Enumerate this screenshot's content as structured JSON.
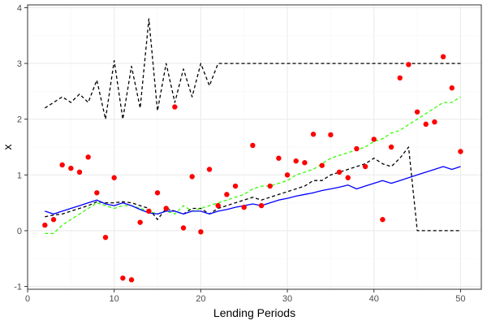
{
  "chart_data": {
    "type": "line",
    "title": "",
    "xlabel": "Lending Periods",
    "ylabel": "x",
    "xlim": [
      0,
      52.4
    ],
    "ylim": [
      -1.05,
      4.05
    ],
    "x_ticks": [
      0,
      10,
      20,
      30,
      40,
      50
    ],
    "y_ticks": [
      -1,
      0,
      1,
      2,
      3,
      4
    ],
    "x_minor": [
      5,
      15,
      25,
      35,
      45
    ],
    "y_minor": [
      -0.5,
      0.5,
      1.5,
      2.5,
      3.5
    ],
    "grid": true,
    "legend": "none",
    "colors": {
      "panel_border": "#333333",
      "grid_major": "#ebebeb",
      "grid_minor": "#f5f5f5",
      "tick": "#333333"
    },
    "series": [
      {
        "style": "dashed",
        "color": "#000000",
        "x": [
          2,
          3,
          4,
          5,
          6,
          7,
          8,
          9,
          10,
          11,
          12,
          13,
          14,
          15,
          16,
          17,
          18,
          19,
          20,
          21,
          22,
          23,
          24,
          25,
          26,
          27,
          28,
          29,
          30,
          31,
          32,
          33,
          34,
          35,
          36,
          37,
          38,
          39,
          40,
          41,
          42,
          43,
          44,
          45,
          46,
          47,
          48,
          49,
          50
        ],
        "y": [
          2.2,
          2.3,
          2.4,
          2.3,
          2.45,
          2.3,
          2.7,
          2.0,
          3.05,
          2.0,
          2.95,
          2.2,
          3.8,
          2.15,
          3.0,
          2.3,
          2.9,
          2.4,
          3.0,
          2.6,
          3.0,
          3.0,
          3.0,
          3.0,
          3.0,
          3.0,
          3.0,
          3.0,
          3.0,
          3.0,
          3.0,
          3.0,
          3.0,
          3.0,
          3.0,
          3.0,
          3.0,
          3.0,
          3.0,
          3.0,
          3.0,
          3.0,
          3.0,
          3.0,
          3.0,
          3.0,
          3.0,
          3.0,
          3.0
        ]
      },
      {
        "style": "dashed",
        "color": "#000000",
        "x": [
          2,
          3,
          4,
          5,
          6,
          7,
          8,
          9,
          10,
          11,
          12,
          13,
          14,
          15,
          16,
          17,
          18,
          19,
          20,
          21,
          22,
          23,
          24,
          25,
          26,
          27,
          28,
          29,
          30,
          31,
          32,
          33,
          34,
          35,
          36,
          37,
          38,
          39,
          40,
          41,
          42,
          43,
          44,
          45,
          46,
          47,
          48,
          49,
          50
        ],
        "y": [
          0.25,
          0.28,
          0.3,
          0.35,
          0.4,
          0.45,
          0.52,
          0.5,
          0.5,
          0.52,
          0.5,
          0.45,
          0.4,
          0.2,
          0.4,
          0.35,
          0.3,
          0.4,
          0.4,
          0.3,
          0.4,
          0.45,
          0.5,
          0.55,
          0.6,
          0.55,
          0.6,
          0.65,
          0.7,
          0.75,
          0.8,
          0.9,
          0.9,
          1.0,
          1.05,
          1.1,
          1.15,
          1.2,
          1.3,
          1.2,
          1.15,
          1.3,
          1.5,
          0.0,
          0.0,
          0.0,
          0.0,
          0.0,
          0.0
        ]
      },
      {
        "style": "dashed",
        "color": "#33ff00",
        "x": [
          2,
          3,
          4,
          5,
          6,
          7,
          8,
          9,
          10,
          11,
          12,
          13,
          14,
          15,
          16,
          17,
          18,
          19,
          20,
          21,
          22,
          23,
          24,
          25,
          26,
          27,
          28,
          29,
          30,
          31,
          32,
          33,
          34,
          35,
          36,
          37,
          38,
          39,
          40,
          41,
          42,
          43,
          44,
          45,
          46,
          47,
          48,
          49,
          50
        ],
        "y": [
          -0.05,
          -0.05,
          0.1,
          0.2,
          0.3,
          0.4,
          0.5,
          0.45,
          0.4,
          0.45,
          0.45,
          0.4,
          0.35,
          0.3,
          0.35,
          0.3,
          0.45,
          0.35,
          0.4,
          0.45,
          0.5,
          0.55,
          0.6,
          0.65,
          0.75,
          0.8,
          0.8,
          0.85,
          0.9,
          1.0,
          1.05,
          1.1,
          1.2,
          1.3,
          1.35,
          1.4,
          1.45,
          1.5,
          1.6,
          1.65,
          1.75,
          1.8,
          1.9,
          2.0,
          2.1,
          2.2,
          2.3,
          2.3,
          2.4
        ]
      },
      {
        "style": "solid",
        "color": "#0000ff",
        "x": [
          2,
          3,
          4,
          5,
          6,
          7,
          8,
          9,
          10,
          11,
          12,
          13,
          14,
          15,
          16,
          17,
          18,
          19,
          20,
          21,
          22,
          23,
          24,
          25,
          26,
          27,
          28,
          29,
          30,
          31,
          32,
          33,
          34,
          35,
          36,
          37,
          38,
          39,
          40,
          41,
          42,
          43,
          44,
          45,
          46,
          47,
          48,
          49,
          50
        ],
        "y": [
          0.35,
          0.3,
          0.35,
          0.4,
          0.45,
          0.5,
          0.55,
          0.48,
          0.45,
          0.5,
          0.45,
          0.38,
          0.32,
          0.3,
          0.35,
          0.35,
          0.3,
          0.35,
          0.35,
          0.3,
          0.35,
          0.38,
          0.42,
          0.45,
          0.48,
          0.45,
          0.5,
          0.55,
          0.58,
          0.62,
          0.65,
          0.68,
          0.72,
          0.75,
          0.78,
          0.82,
          0.75,
          0.8,
          0.85,
          0.9,
          0.85,
          0.9,
          0.95,
          1.0,
          1.05,
          1.1,
          1.15,
          1.1,
          1.15
        ]
      }
    ],
    "points": {
      "color": "#ff0000",
      "x": [
        2,
        3,
        4,
        5,
        6,
        7,
        8,
        9,
        10,
        11,
        12,
        13,
        14,
        15,
        16,
        17,
        18,
        19,
        20,
        21,
        22,
        23,
        24,
        25,
        26,
        27,
        28,
        29,
        30,
        31,
        32,
        33,
        34,
        35,
        36,
        37,
        38,
        39,
        40,
        41,
        42,
        43,
        44,
        45,
        46,
        47,
        48,
        49,
        50
      ],
      "y": [
        0.1,
        0.2,
        1.18,
        1.12,
        1.05,
        1.32,
        0.68,
        -0.12,
        0.95,
        -0.85,
        -0.88,
        0.15,
        0.35,
        0.68,
        0.4,
        2.22,
        0.05,
        0.97,
        -0.02,
        1.1,
        0.45,
        0.65,
        0.8,
        0.42,
        1.53,
        0.45,
        0.8,
        1.3,
        1.0,
        1.25,
        1.22,
        1.73,
        1.17,
        1.72,
        1.05,
        0.95,
        1.47,
        1.15,
        1.64,
        0.2,
        1.5,
        2.74,
        2.98,
        2.13,
        1.91,
        1.95,
        3.12,
        2.56,
        1.42
      ]
    }
  }
}
